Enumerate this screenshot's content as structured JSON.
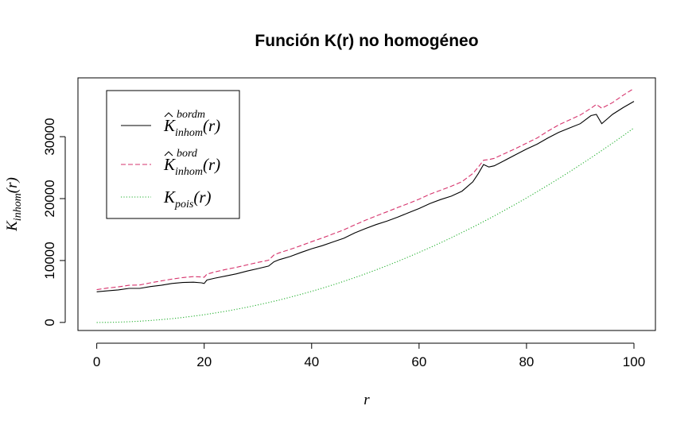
{
  "chart_data": {
    "type": "line",
    "title": "Función K(r) no homogéneo",
    "xlabel": {
      "main": "r",
      "sub": ""
    },
    "ylabel": {
      "main": "K",
      "sub": "inhom",
      "suffix": "(r)"
    },
    "xlim": [
      -3.5,
      104
    ],
    "ylim": [
      -1300,
      39500
    ],
    "xticks": [
      0,
      20,
      40,
      60,
      80,
      100
    ],
    "yticks": [
      0,
      10000,
      20000,
      30000
    ],
    "ytick_labels": [
      "0",
      "10000",
      "20000",
      "30000"
    ],
    "grid": false,
    "legend_position": "top-left",
    "x": [
      0,
      2,
      4,
      6,
      8,
      10,
      12,
      14,
      16,
      18,
      19.5,
      20,
      20.5,
      22,
      24,
      26,
      28,
      30,
      32,
      33,
      34,
      36,
      38,
      40,
      42,
      44,
      46,
      48,
      50,
      52,
      54,
      56,
      58,
      60,
      62,
      64,
      66,
      68,
      70,
      71,
      72,
      73,
      74,
      76,
      78,
      80,
      82,
      84,
      86,
      88,
      90,
      92,
      93,
      94,
      96,
      98,
      100
    ],
    "series": [
      {
        "name": "K̂ bordm inhom (r)",
        "legend": {
          "main": "K",
          "hat": true,
          "sup": "bordm",
          "sub": "inhom",
          "suffix": "(r)"
        },
        "color": "#000000",
        "dash": "solid",
        "values": [
          4950,
          5100,
          5250,
          5500,
          5500,
          5800,
          6000,
          6300,
          6450,
          6500,
          6400,
          6300,
          6850,
          7150,
          7500,
          7850,
          8300,
          8700,
          9100,
          9800,
          10150,
          10650,
          11300,
          11900,
          12400,
          13000,
          13600,
          14450,
          15150,
          15800,
          16350,
          17000,
          17700,
          18400,
          19200,
          19850,
          20400,
          21200,
          22700,
          24000,
          25500,
          25100,
          25300,
          26200,
          27100,
          28000,
          28800,
          29800,
          30700,
          31400,
          32100,
          33400,
          33600,
          32100,
          33600,
          34700,
          35700
        ]
      },
      {
        "name": "K̂ bord inhom (r)",
        "legend": {
          "main": "K",
          "hat": true,
          "sup": "bord",
          "sub": "inhom",
          "suffix": "(r)"
        },
        "color": "#d6336c",
        "dash": "dashed",
        "values": [
          5300,
          5550,
          5750,
          6000,
          6050,
          6400,
          6700,
          7000,
          7250,
          7400,
          7350,
          7300,
          7800,
          8150,
          8550,
          8900,
          9300,
          9700,
          10050,
          10900,
          11250,
          11800,
          12400,
          13050,
          13650,
          14300,
          14950,
          15750,
          16500,
          17200,
          17850,
          18550,
          19200,
          19900,
          20700,
          21350,
          22000,
          22750,
          24050,
          25050,
          26200,
          26300,
          26500,
          27300,
          28100,
          28950,
          29800,
          30900,
          31900,
          32700,
          33500,
          34600,
          35200,
          34600,
          35500,
          36700,
          37800
        ]
      },
      {
        "name": "K pois (r)",
        "legend": {
          "main": "K",
          "hat": false,
          "sup": "",
          "sub": "pois",
          "suffix": "(r)"
        },
        "color": "#22b02e",
        "dash": "dotted",
        "values": [
          0,
          13,
          50,
          113,
          201,
          314,
          452,
          616,
          804,
          1018,
          1195,
          1257,
          1320,
          1521,
          1810,
          2124,
          2463,
          2827,
          3217,
          3419,
          3632,
          4072,
          4536,
          5027,
          5542,
          6082,
          6648,
          7238,
          7854,
          8495,
          9161,
          9852,
          10568,
          11310,
          12076,
          12868,
          13685,
          14527,
          15394,
          15834,
          16286,
          16742,
          17203,
          18146,
          19113,
          20106,
          21124,
          22167,
          23235,
          24328,
          25447,
          26590,
          27172,
          27759,
          28953,
          30172,
          31416
        ]
      }
    ]
  }
}
